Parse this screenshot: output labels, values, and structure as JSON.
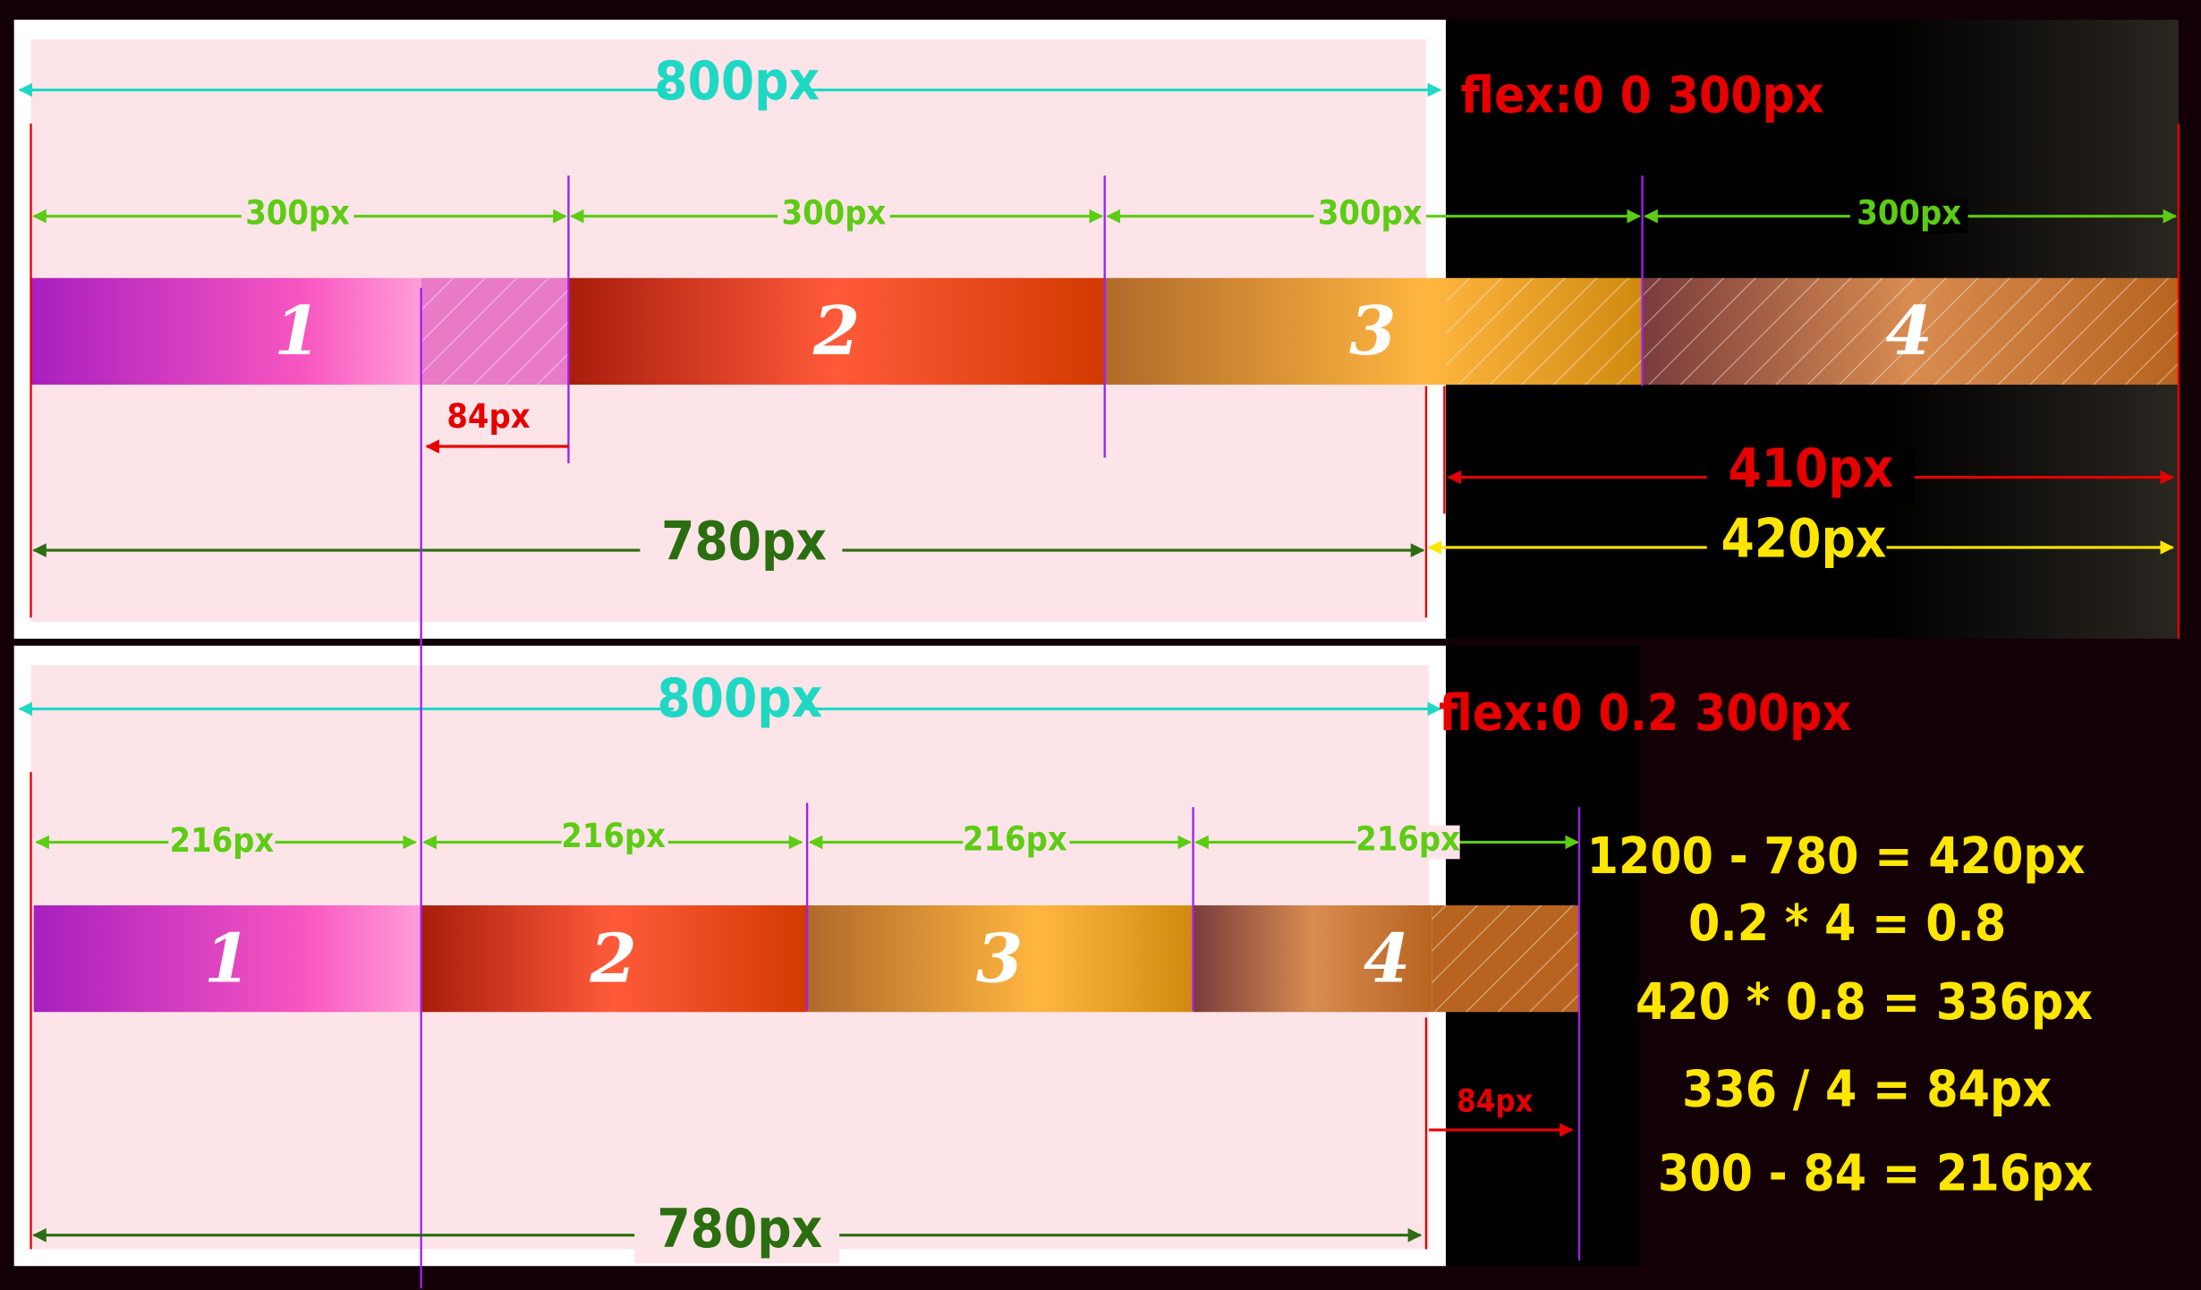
{
  "top": {
    "rule": "flex:0 0 300px",
    "container": "800px",
    "item_widths": [
      "300px",
      "300px",
      "300px",
      "300px"
    ],
    "items": [
      "1",
      "2",
      "3",
      "4"
    ],
    "shrink": "84px",
    "overflow": "410px",
    "inner": "780px",
    "excess": "420px"
  },
  "bottom": {
    "rule": "flex:0 0.2 300px",
    "container": "800px",
    "item_widths": [
      "216px",
      "216px",
      "216px",
      "216px"
    ],
    "items": [
      "1",
      "2",
      "3",
      "4"
    ],
    "shrink": "84px",
    "inner": "780px",
    "formulas": [
      "1200 - 780 = 420px",
      "0.2  * 4 = 0.8",
      "420 * 0.8 = 336px",
      "336  / 4 = 84px",
      "300 - 84 = 216px"
    ]
  }
}
